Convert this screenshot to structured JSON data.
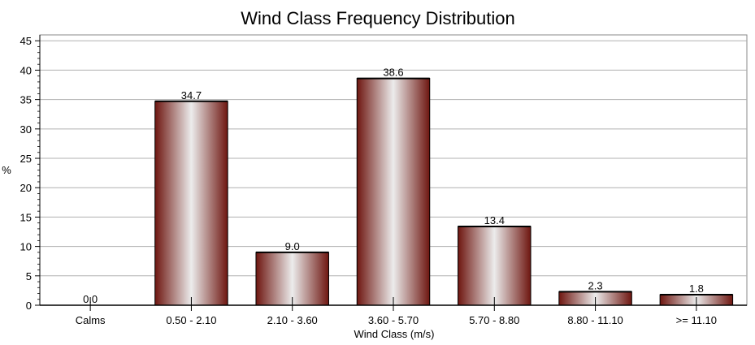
{
  "chart_data": {
    "type": "bar",
    "title": "Wind Class Frequency Distribution",
    "xlabel": "Wind Class (m/s)",
    "ylabel": "%",
    "categories": [
      "Calms",
      "0.50 - 2.10",
      "2.10 - 3.60",
      "3.60 - 5.70",
      "5.70 - 8.80",
      "8.80 - 11.10",
      ">= 11.10"
    ],
    "values": [
      0.0,
      34.7,
      9.0,
      38.6,
      13.4,
      2.3,
      1.8
    ],
    "value_labels": [
      "0.0",
      "34.7",
      "9.0",
      "38.6",
      "13.4",
      "2.3",
      "1.8"
    ],
    "ylim": [
      0,
      46
    ],
    "yticks": [
      0,
      5,
      10,
      15,
      20,
      25,
      30,
      35,
      40,
      45
    ],
    "grid": true,
    "legend": "none",
    "bar_color": "#7a1a14",
    "bar_highlight": "#eeeeee"
  }
}
